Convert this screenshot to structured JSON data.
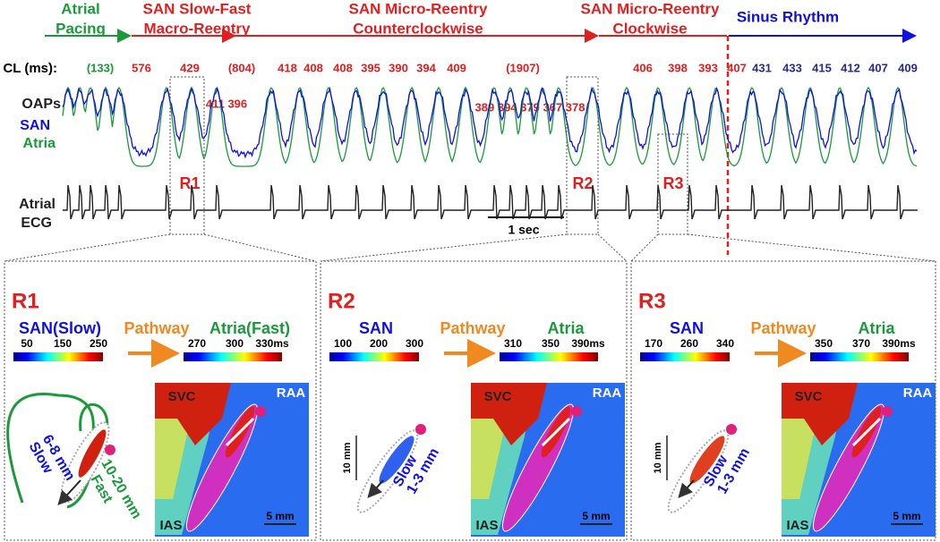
{
  "phases": [
    {
      "lines": [
        "Atrial",
        "Pacing"
      ]
    },
    {
      "lines": [
        "SAN Slow-Fast",
        "Macro-Reentry"
      ]
    },
    {
      "lines": [
        "SAN Micro-Reentry",
        "Counterclockwise"
      ]
    },
    {
      "lines": [
        "SAN Micro-Reentry",
        "Clockwise"
      ]
    },
    {
      "lines": [
        "Sinus Rhythm"
      ]
    }
  ],
  "cl_label": "CL (ms):",
  "cycle_lengths": [
    "(133)",
    "576",
    "429",
    "(804)",
    "418",
    "408",
    "408",
    "395",
    "390",
    "394",
    "409",
    "(1907)",
    "406",
    "398",
    "393",
    "407",
    "431",
    "433",
    "415",
    "412",
    "407",
    "409"
  ],
  "secondary_cycle_lengths": [
    "411 396",
    "389 394 379 367 378"
  ],
  "trace_labels": {
    "oaps": "OAPs",
    "san": "SAN",
    "atria": "Atria",
    "ecg": [
      "Atrial",
      "ECG"
    ]
  },
  "regions": [
    "R1",
    "R2",
    "R3"
  ],
  "time_scale": "1 sec",
  "panels": [
    {
      "title": "R1",
      "san_label": "SAN(Slow)",
      "pathway": "Pathway",
      "atria_label": "Atria(Fast)",
      "san_scale": [
        "50",
        "150",
        "250"
      ],
      "atria_scale": [
        "270",
        "300",
        "330ms"
      ],
      "map_labels": [
        "SVC",
        "RAA",
        "IAS"
      ],
      "map_scalebar": "5 mm",
      "diagram": {
        "slow": [
          "Slow",
          "6-8 mm"
        ],
        "fast": [
          "Fast",
          "10-20 mm"
        ]
      }
    },
    {
      "title": "R2",
      "san_label": "SAN",
      "pathway": "Pathway",
      "atria_label": "Atria",
      "san_scale": [
        "100",
        "200",
        "300"
      ],
      "atria_scale": [
        "310",
        "350",
        "390ms"
      ],
      "map_labels": [
        "SVC",
        "RAA",
        "IAS"
      ],
      "map_scalebar": "5 mm",
      "diagram": {
        "scale": "10 mm",
        "slow": [
          "Slow",
          "1-3 mm"
        ]
      }
    },
    {
      "title": "R3",
      "san_label": "SAN",
      "pathway": "Pathway",
      "atria_label": "Atria",
      "san_scale": [
        "170",
        "260",
        "340"
      ],
      "atria_scale": [
        "350",
        "370",
        "390ms"
      ],
      "map_labels": [
        "SVC",
        "RAA",
        "IAS"
      ],
      "map_scalebar": "5 mm",
      "diagram": {
        "scale": "10 mm",
        "slow": [
          "Slow",
          "1-3 mm"
        ]
      }
    }
  ]
}
